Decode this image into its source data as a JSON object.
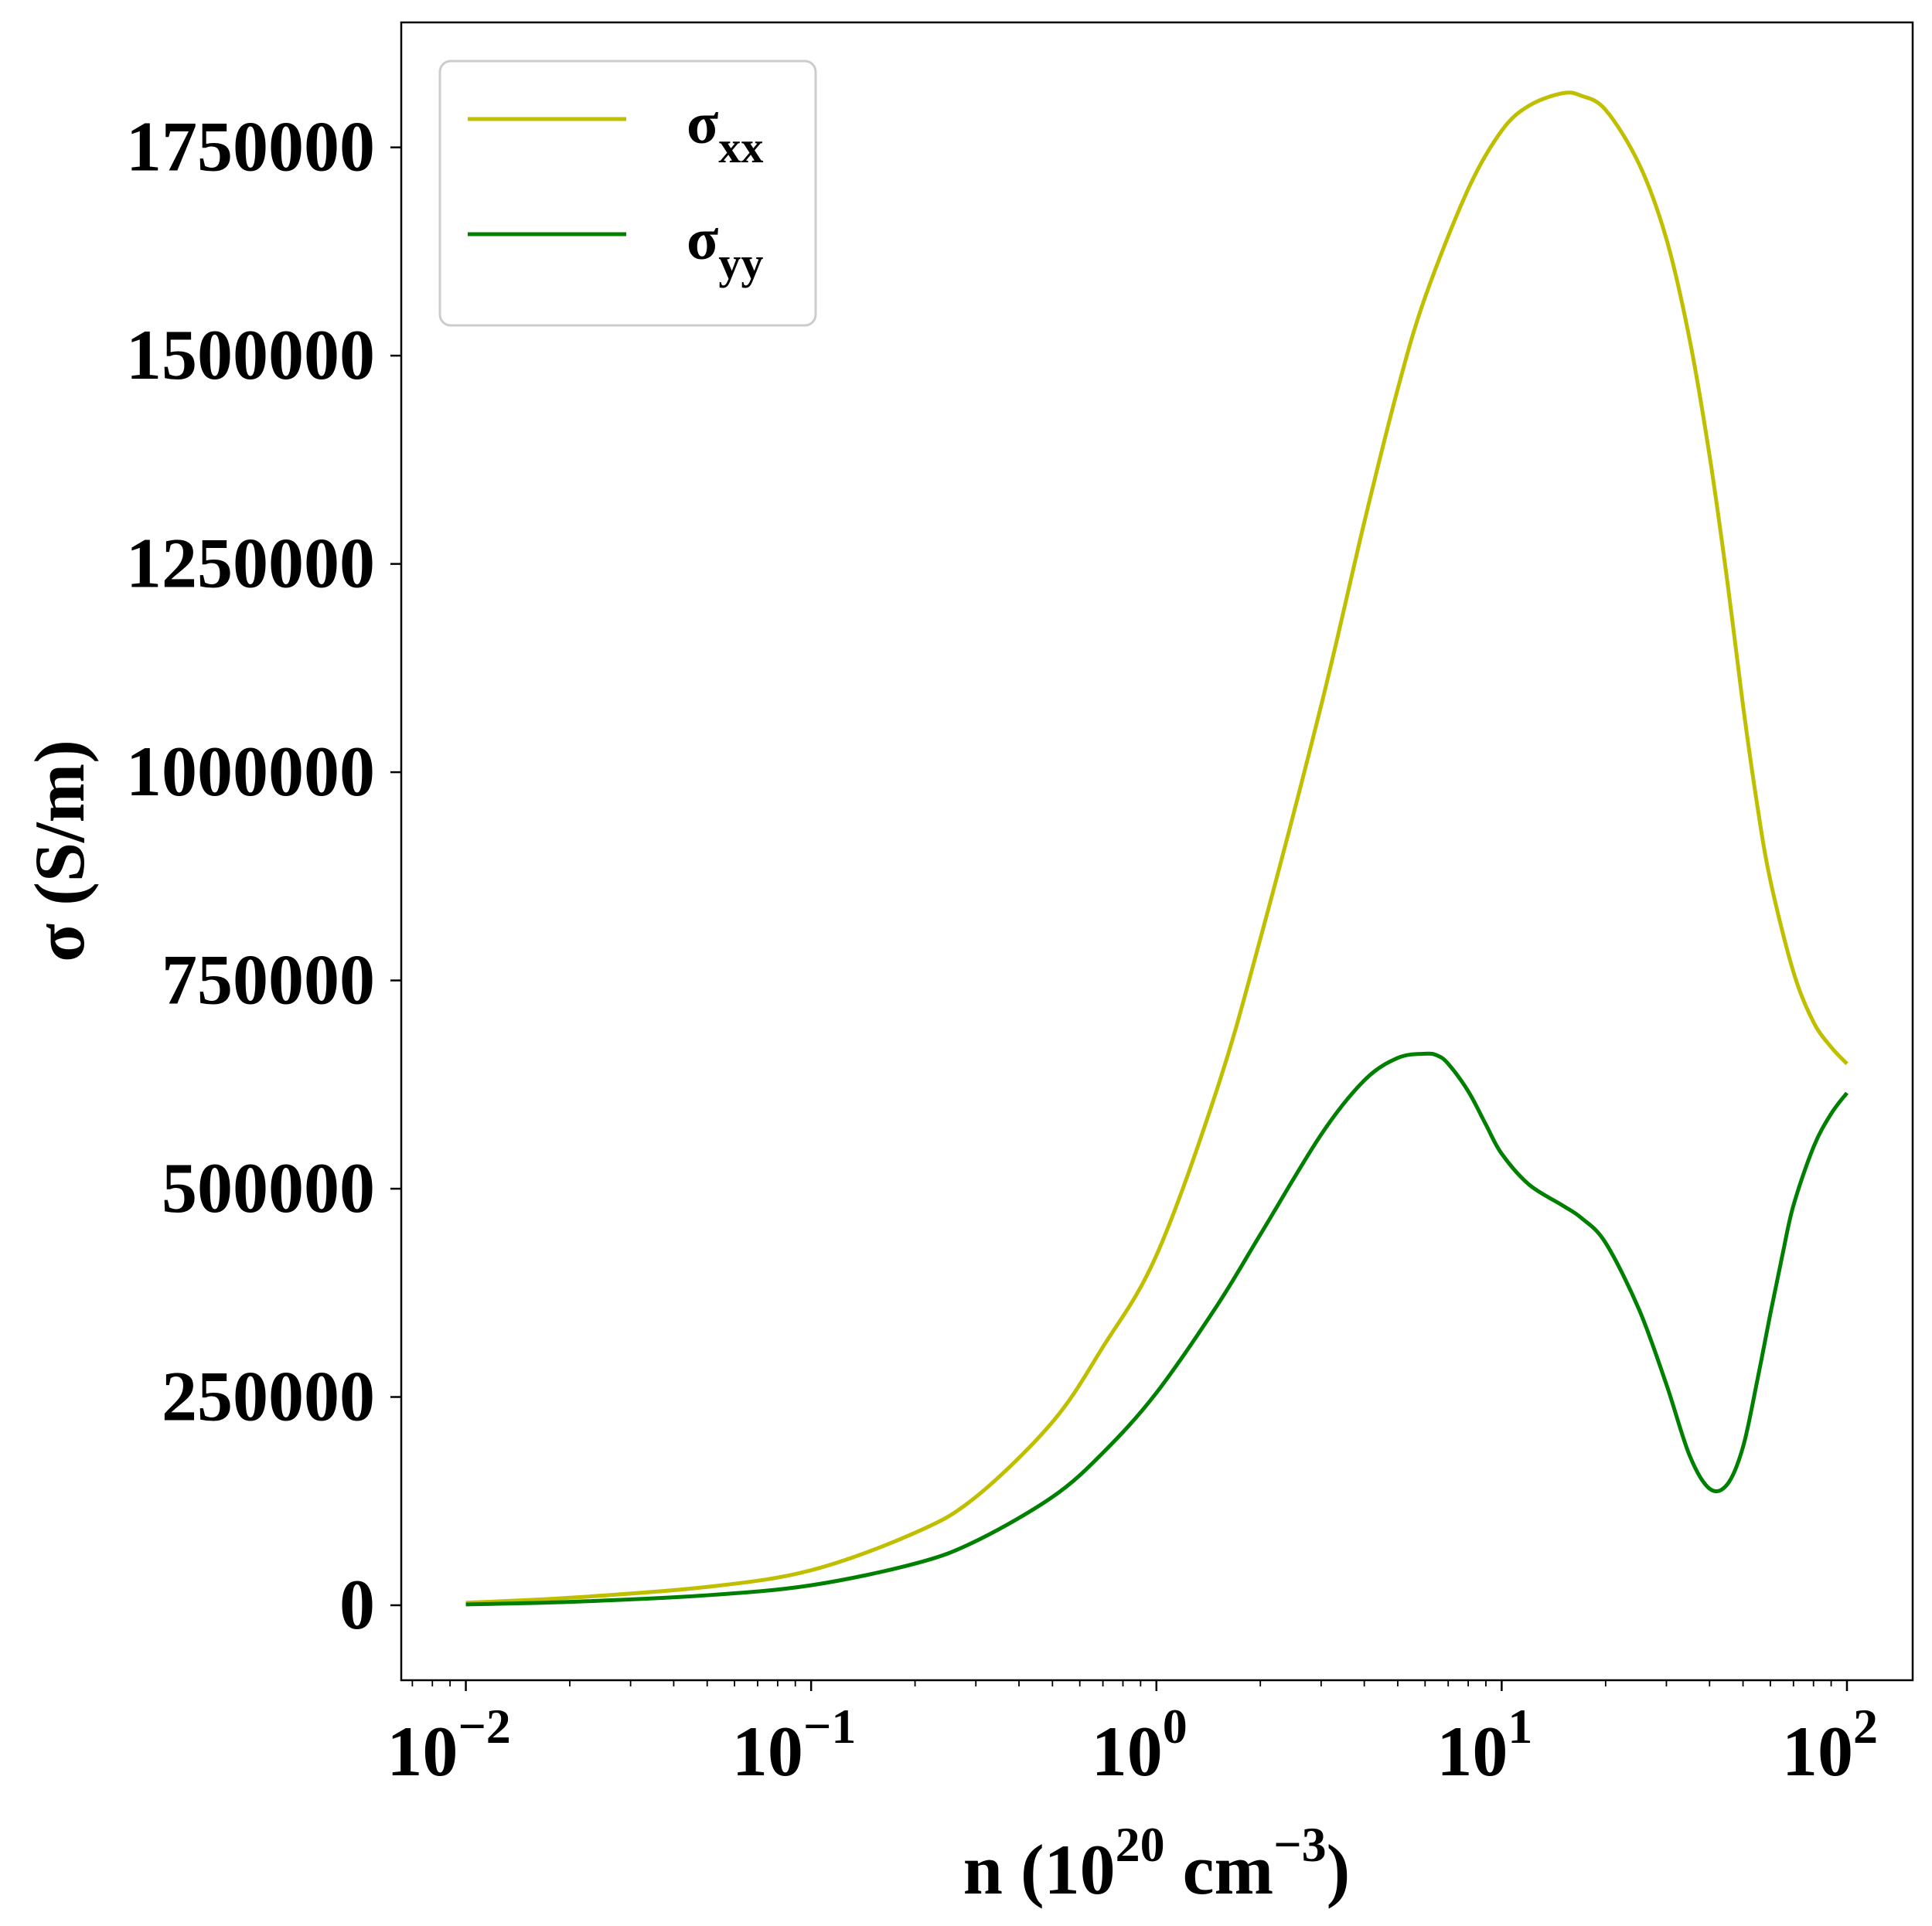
{
  "chart_data": {
    "type": "line",
    "xscale": "log",
    "xlim": [
      0.0065,
      155
    ],
    "ylim": [
      -90000,
      1900000
    ],
    "grid": false,
    "legend_position": "top-left",
    "xlabel": {
      "base": "n (10",
      "sup1": "20",
      "mid": " cm",
      "sup2": "−3",
      "end": ")"
    },
    "ylabel": "σ (S/m)",
    "x_ticks": [
      {
        "value": 0.01,
        "base": "10",
        "exp": "−2"
      },
      {
        "value": 0.1,
        "base": "10",
        "exp": "−1"
      },
      {
        "value": 1,
        "base": "10",
        "exp": "0"
      },
      {
        "value": 10,
        "base": "10",
        "exp": "1"
      },
      {
        "value": 100,
        "base": "10",
        "exp": "2"
      }
    ],
    "y_ticks": [
      {
        "value": 0,
        "label": "0"
      },
      {
        "value": 250000,
        "label": "250000"
      },
      {
        "value": 500000,
        "label": "500000"
      },
      {
        "value": 750000,
        "label": "750000"
      },
      {
        "value": 1000000,
        "label": "1000000"
      },
      {
        "value": 1250000,
        "label": "1250000"
      },
      {
        "value": 1500000,
        "label": "1500000"
      },
      {
        "value": 1750000,
        "label": "1750000"
      }
    ],
    "series": [
      {
        "name": "σ",
        "name_sub": "xx",
        "color": "#bfbf00",
        "x": [
          0.01,
          0.02,
          0.05,
          0.1,
          0.2,
          0.3,
          0.5,
          0.7,
          1,
          1.5,
          2,
          3,
          4,
          5,
          6,
          8,
          10,
          12,
          15,
          17,
          20,
          25,
          30,
          35,
          40,
          45,
          50,
          55,
          60,
          70,
          80,
          90,
          100
        ],
        "y": [
          3000,
          9000,
          22000,
          42000,
          87000,
          130000,
          220000,
          310000,
          420000,
          620000,
          800000,
          1080000,
          1300000,
          1460000,
          1570000,
          1700000,
          1770000,
          1800000,
          1815000,
          1812000,
          1795000,
          1730000,
          1640000,
          1520000,
          1380000,
          1230000,
          1080000,
          960000,
          870000,
          760000,
          700000,
          670000,
          650000
        ]
      },
      {
        "name": "σ",
        "name_sub": "yy",
        "color": "#008000",
        "x": [
          0.01,
          0.02,
          0.05,
          0.1,
          0.2,
          0.3,
          0.5,
          0.7,
          1,
          1.5,
          2,
          3,
          4,
          5,
          6,
          6.5,
          7,
          8,
          9,
          10,
          12,
          15,
          17,
          20,
          25,
          30,
          35,
          40,
          45,
          50,
          55,
          60,
          65,
          70,
          80,
          90,
          100
        ],
        "y": [
          1000,
          4000,
          12000,
          24000,
          50000,
          77000,
          130000,
          183000,
          255000,
          360000,
          445000,
          565000,
          630000,
          657000,
          662000,
          660000,
          650000,
          617000,
          577000,
          542000,
          505000,
          480000,
          465000,
          435000,
          355000,
          265000,
          180000,
          140000,
          145000,
          190000,
          270000,
          350000,
          420000,
          480000,
          550000,
          590000,
          615000
        ]
      }
    ]
  }
}
